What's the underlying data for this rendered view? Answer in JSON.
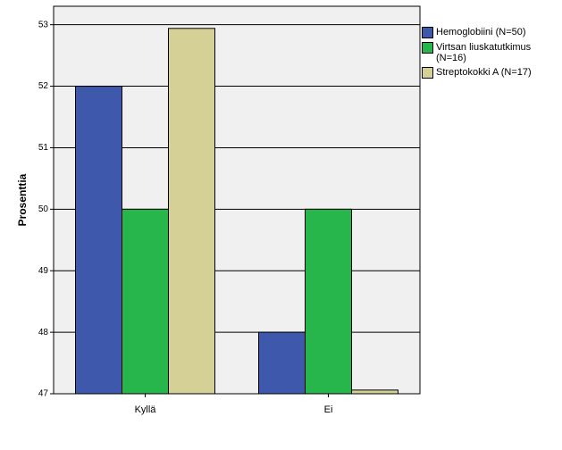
{
  "chart_data": {
    "type": "bar",
    "y_label": "Prosenttia",
    "categories": [
      "Kyllä",
      "Ei"
    ],
    "series": [
      {
        "name": "Hemoglobiini (N=50)",
        "color": "#3e58ac",
        "values": [
          52,
          48
        ]
      },
      {
        "name": "Virtsan liuskatutkimus (N=16)",
        "color": "#26b64b",
        "values": [
          50,
          50
        ]
      },
      {
        "name": "Streptokokki A (N=17)",
        "color": "#d4d096",
        "values": [
          52.94,
          47.06
        ]
      }
    ],
    "ylim": [
      47,
      53.3
    ],
    "yticks": [
      47,
      48,
      49,
      50,
      51,
      52,
      53
    ],
    "grid": true
  }
}
